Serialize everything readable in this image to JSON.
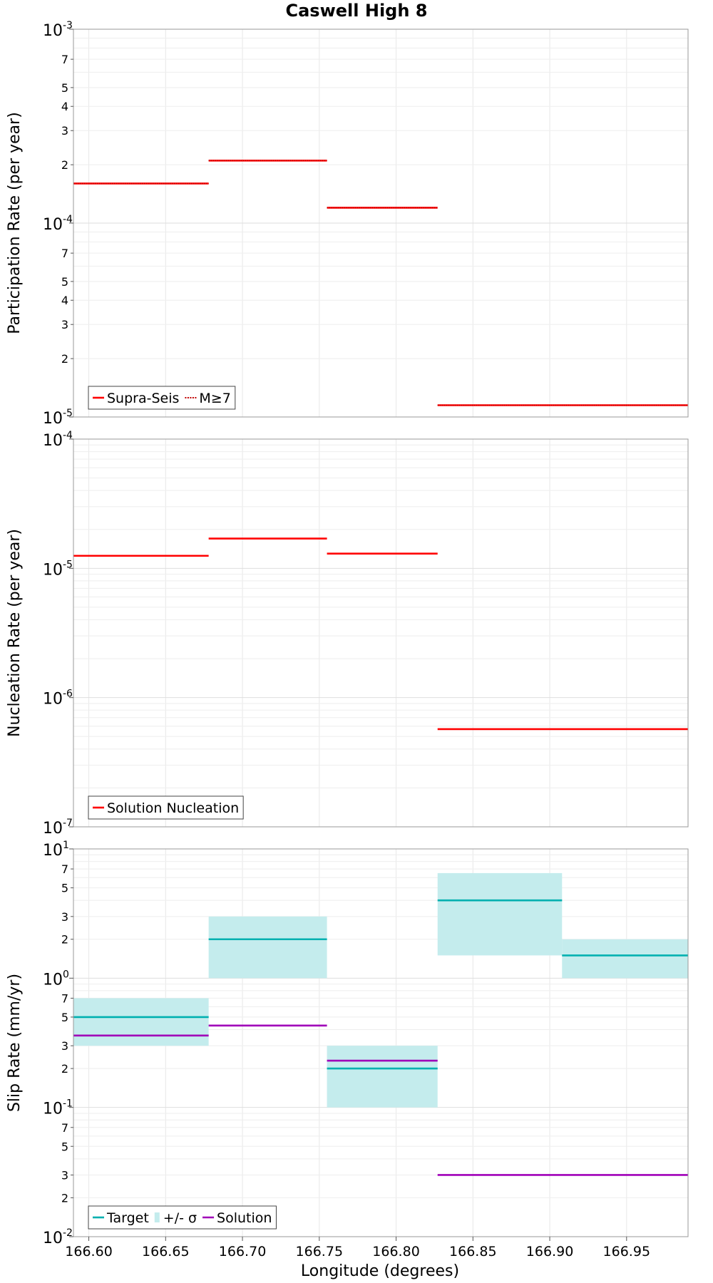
{
  "chart_data": {
    "title": "Caswell High 8",
    "xlabel": "Longitude (degrees)",
    "xlim": [
      166.59,
      166.99
    ],
    "xticks": [
      "166.60",
      "166.65",
      "166.70",
      "166.75",
      "166.80",
      "166.85",
      "166.90",
      "166.95"
    ],
    "xtick_values": [
      166.6,
      166.65,
      166.7,
      166.75,
      166.8,
      166.85,
      166.9,
      166.95
    ],
    "grid": true,
    "panels": [
      {
        "type": "line",
        "ylabel": "Participation Rate (per year)",
        "yscale": "log",
        "ylim": [
          1e-05,
          0.001
        ],
        "y_major_ticks": [
          {
            "base": "10",
            "exp": "-3",
            "value": 0.001
          },
          {
            "base": "10",
            "exp": "-4",
            "value": 0.0001
          },
          {
            "base": "10",
            "exp": "-5",
            "value": 1e-05
          }
        ],
        "y_minor_ticks": [
          {
            "label": "7",
            "value": 0.0007
          },
          {
            "label": "5",
            "value": 0.0005
          },
          {
            "label": "4",
            "value": 0.0004
          },
          {
            "label": "3",
            "value": 0.0003
          },
          {
            "label": "2",
            "value": 0.0002
          },
          {
            "label": "7",
            "value": 7e-05
          },
          {
            "label": "5",
            "value": 5e-05
          },
          {
            "label": "4",
            "value": 4e-05
          },
          {
            "label": "3",
            "value": 3e-05
          },
          {
            "label": "2",
            "value": 2e-05
          }
        ],
        "legend": {
          "position": "bottom-left",
          "entries": [
            {
              "label": "Supra-Seis",
              "color": "#ff0000",
              "style": "solid"
            },
            {
              "label": "M≥7",
              "color": "#ff0000",
              "style": "dotted"
            }
          ]
        },
        "series": [
          {
            "name": "Supra-Seis",
            "color": "#ff0000",
            "style": "solid",
            "segments": [
              {
                "x0": 166.59,
                "x1": 166.678,
                "y": 0.00016
              },
              {
                "x0": 166.678,
                "x1": 166.755,
                "y": 0.00021
              },
              {
                "x0": 166.755,
                "x1": 166.827,
                "y": 0.00012
              },
              {
                "x0": 166.827,
                "x1": 166.99,
                "y": 1.15e-05
              }
            ]
          },
          {
            "name": "M≥7",
            "color": "#ff0000",
            "style": "dotted",
            "segments": [
              {
                "x0": 166.59,
                "x1": 166.678,
                "y": 0.00016
              },
              {
                "x0": 166.678,
                "x1": 166.755,
                "y": 0.00021
              },
              {
                "x0": 166.755,
                "x1": 166.827,
                "y": 0.00012
              },
              {
                "x0": 166.827,
                "x1": 166.99,
                "y": 1.15e-05
              }
            ]
          }
        ]
      },
      {
        "type": "line",
        "ylabel": "Nucleation Rate (per year)",
        "yscale": "log",
        "ylim": [
          1e-07,
          0.0001
        ],
        "y_major_ticks": [
          {
            "base": "10",
            "exp": "-4",
            "value": 0.0001
          },
          {
            "base": "10",
            "exp": "-5",
            "value": 1e-05
          },
          {
            "base": "10",
            "exp": "-6",
            "value": 1e-06
          },
          {
            "base": "10",
            "exp": "-7",
            "value": 1e-07
          }
        ],
        "y_minor_ticks": [],
        "legend": {
          "position": "bottom-left",
          "entries": [
            {
              "label": "Solution Nucleation",
              "color": "#ff0000",
              "style": "solid"
            }
          ]
        },
        "series": [
          {
            "name": "Solution Nucleation",
            "color": "#ff0000",
            "style": "solid",
            "segments": [
              {
                "x0": 166.59,
                "x1": 166.678,
                "y": 1.25e-05
              },
              {
                "x0": 166.678,
                "x1": 166.755,
                "y": 1.7e-05
              },
              {
                "x0": 166.755,
                "x1": 166.827,
                "y": 1.3e-05
              },
              {
                "x0": 166.827,
                "x1": 166.99,
                "y": 5.7e-07
              }
            ]
          }
        ]
      },
      {
        "type": "line",
        "ylabel": "Slip Rate (mm/yr)",
        "yscale": "log",
        "ylim": [
          0.01,
          10
        ],
        "y_major_ticks": [
          {
            "base": "10",
            "exp": "1",
            "value": 10
          },
          {
            "base": "10",
            "exp": "0",
            "value": 1
          },
          {
            "base": "10",
            "exp": "-1",
            "value": 0.1
          },
          {
            "base": "10",
            "exp": "-2",
            "value": 0.01
          }
        ],
        "y_minor_ticks": [
          {
            "label": "7",
            "value": 7
          },
          {
            "label": "5",
            "value": 5
          },
          {
            "label": "3",
            "value": 3
          },
          {
            "label": "2",
            "value": 2
          },
          {
            "label": "7",
            "value": 0.7
          },
          {
            "label": "5",
            "value": 0.5
          },
          {
            "label": "3",
            "value": 0.3
          },
          {
            "label": "2",
            "value": 0.2
          },
          {
            "label": "7",
            "value": 0.07
          },
          {
            "label": "5",
            "value": 0.05
          },
          {
            "label": "3",
            "value": 0.03
          },
          {
            "label": "2",
            "value": 0.02
          }
        ],
        "legend": {
          "position": "bottom-left",
          "entries": [
            {
              "label": "Target",
              "color": "#00b0b0",
              "style": "solid"
            },
            {
              "label": "+/- σ",
              "color": "#c4eced",
              "style": "band"
            },
            {
              "label": "Solution",
              "color": "#a000b8",
              "style": "solid"
            }
          ]
        },
        "bands": [
          {
            "name": "+/- σ",
            "color": "#c4eced",
            "segments": [
              {
                "x0": 166.59,
                "x1": 166.678,
                "y0": 0.3,
                "y1": 0.7
              },
              {
                "x0": 166.678,
                "x1": 166.755,
                "y0": 1,
                "y1": 3
              },
              {
                "x0": 166.755,
                "x1": 166.827,
                "y0": 0.1,
                "y1": 0.3
              },
              {
                "x0": 166.827,
                "x1": 166.908,
                "y0": 1.5,
                "y1": 6.5
              },
              {
                "x0": 166.908,
                "x1": 166.99,
                "y0": 1,
                "y1": 2
              }
            ]
          }
        ],
        "series": [
          {
            "name": "Target",
            "color": "#00b0b0",
            "style": "solid",
            "segments": [
              {
                "x0": 166.59,
                "x1": 166.678,
                "y": 0.5
              },
              {
                "x0": 166.678,
                "x1": 166.755,
                "y": 2
              },
              {
                "x0": 166.755,
                "x1": 166.827,
                "y": 0.2
              },
              {
                "x0": 166.827,
                "x1": 166.908,
                "y": 4
              },
              {
                "x0": 166.908,
                "x1": 166.99,
                "y": 1.5
              }
            ]
          },
          {
            "name": "Solution",
            "color": "#a000b8",
            "style": "solid",
            "segments": [
              {
                "x0": 166.59,
                "x1": 166.678,
                "y": 0.36
              },
              {
                "x0": 166.678,
                "x1": 166.755,
                "y": 0.43
              },
              {
                "x0": 166.755,
                "x1": 166.827,
                "y": 0.23
              },
              {
                "x0": 166.827,
                "x1": 166.99,
                "y": 0.03
              }
            ]
          }
        ]
      }
    ]
  }
}
